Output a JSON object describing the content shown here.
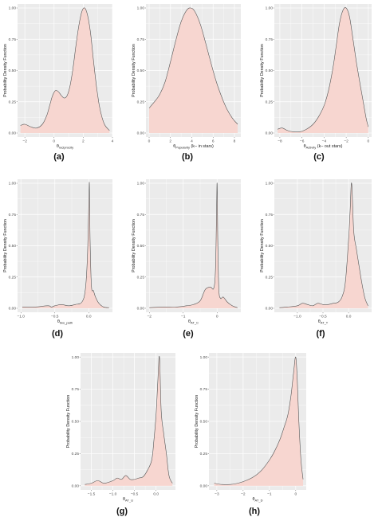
{
  "chart_data": [
    {
      "panel": "(a)",
      "type": "area",
      "ylabel": "Probability Density Function",
      "xlabel": {
        "main": "θ",
        "sub": "reciprocity",
        "suffix": ""
      },
      "xlim": [
        -2.5,
        4
      ],
      "ylim": [
        0,
        1
      ],
      "xticks": [
        -2,
        0,
        2,
        4
      ],
      "yticks": [
        0.0,
        0.25,
        0.5,
        0.75,
        1.0
      ],
      "ytick_labels": [
        "0.00",
        "0.25",
        "0.50",
        "0.75",
        "1.00"
      ],
      "x": [
        -2.3,
        -2.0,
        -1.6,
        -1.2,
        -0.8,
        -0.5,
        -0.3,
        -0.1,
        0.1,
        0.3,
        0.5,
        0.7,
        0.9,
        1.1,
        1.3,
        1.5,
        1.7,
        1.9,
        2.1,
        2.3,
        2.5,
        2.7,
        2.9,
        3.1,
        3.3,
        3.5,
        3.8
      ],
      "y": [
        0.06,
        0.07,
        0.05,
        0.04,
        0.07,
        0.14,
        0.22,
        0.3,
        0.34,
        0.33,
        0.3,
        0.28,
        0.3,
        0.38,
        0.52,
        0.7,
        0.86,
        0.97,
        1.0,
        0.94,
        0.8,
        0.58,
        0.38,
        0.22,
        0.12,
        0.06,
        0.02
      ]
    },
    {
      "panel": "(b)",
      "type": "area",
      "ylabel": "Probability Density Function",
      "xlabel": {
        "main": "θ",
        "sub": "Popularity",
        "suffix": " (k− in stars)"
      },
      "xlim": [
        -0.3,
        8.6
      ],
      "ylim": [
        0,
        1
      ],
      "xticks": [
        0,
        2,
        4,
        6,
        8
      ],
      "yticks": [
        0.0,
        0.25,
        0.5,
        0.75,
        1.0
      ],
      "ytick_labels": [
        "0.00",
        "0.25",
        "0.50",
        "0.75",
        "1.00"
      ],
      "x": [
        0,
        0.5,
        1.0,
        1.5,
        2.0,
        2.5,
        3.0,
        3.5,
        3.9,
        4.3,
        4.8,
        5.3,
        5.8,
        6.3,
        6.8,
        7.3,
        7.8,
        8.3
      ],
      "y": [
        0.2,
        0.25,
        0.31,
        0.41,
        0.57,
        0.74,
        0.89,
        0.98,
        1.0,
        0.97,
        0.87,
        0.72,
        0.56,
        0.41,
        0.29,
        0.19,
        0.12,
        0.07
      ]
    },
    {
      "panel": "(c)",
      "type": "area",
      "ylabel": "Probability Density Function",
      "xlabel": {
        "main": "θ",
        "sub": "Activity",
        "suffix": " (k− out stars)"
      },
      "xlim": [
        -8.5,
        0.3
      ],
      "ylim": [
        0,
        1
      ],
      "xticks": [
        -8,
        -6,
        -4,
        -2,
        0
      ],
      "yticks": [
        0.0,
        0.25,
        0.5,
        0.75,
        1.0
      ],
      "ytick_labels": [
        "0.00",
        "0.25",
        "0.50",
        "0.75",
        "1.00"
      ],
      "x": [
        -8.2,
        -7.8,
        -7.3,
        -6.8,
        -6.2,
        -5.6,
        -5.0,
        -4.5,
        -4.0,
        -3.6,
        -3.2,
        -2.9,
        -2.6,
        -2.3,
        -2.0,
        -1.7,
        -1.4,
        -1.1,
        -0.8,
        -0.5,
        -0.2,
        0.0
      ],
      "y": [
        0.03,
        0.04,
        0.02,
        0.01,
        0.01,
        0.03,
        0.07,
        0.13,
        0.22,
        0.34,
        0.52,
        0.7,
        0.88,
        0.98,
        1.0,
        0.93,
        0.76,
        0.58,
        0.42,
        0.27,
        0.12,
        0.05
      ]
    },
    {
      "panel": "(d)",
      "type": "area",
      "ylabel": "Probability Density Function",
      "xlabel": {
        "main": "θ",
        "sub": "two_path",
        "suffix": ""
      },
      "xlim": [
        -1.05,
        0.35
      ],
      "ylim": [
        0,
        1
      ],
      "xticks": [
        -1.0,
        -0.5,
        0.0
      ],
      "xtick_labels": [
        "−1.0",
        "−0.5",
        "0.0"
      ],
      "yticks": [
        0.0,
        0.25,
        0.5,
        0.75,
        1.0
      ],
      "ytick_labels": [
        "0.00",
        "0.25",
        "0.50",
        "0.75",
        "1.00"
      ],
      "x": [
        -0.98,
        -0.8,
        -0.6,
        -0.55,
        -0.5,
        -0.4,
        -0.3,
        -0.2,
        -0.1,
        -0.05,
        -0.02,
        0.0,
        0.01,
        0.02,
        0.04,
        0.07,
        0.1,
        0.15,
        0.22,
        0.3
      ],
      "y": [
        0.01,
        0.01,
        0.02,
        0.01,
        0.02,
        0.03,
        0.02,
        0.03,
        0.05,
        0.15,
        0.4,
        0.8,
        1.0,
        0.55,
        0.18,
        0.14,
        0.09,
        0.04,
        0.01,
        0.005
      ]
    },
    {
      "panel": "(e)",
      "type": "area",
      "ylabel": "Probability Density Function",
      "xlabel": {
        "main": "θ",
        "sub": "AT_C",
        "suffix": ""
      },
      "xlim": [
        -2.1,
        0.7
      ],
      "ylim": [
        0,
        1
      ],
      "xticks": [
        -2,
        -1,
        0
      ],
      "yticks": [
        0.0,
        0.25,
        0.5,
        0.75,
        1.0
      ],
      "ytick_labels": [
        "0.00",
        "0.25",
        "0.50",
        "0.75",
        "1.00"
      ],
      "x": [
        -2.0,
        -1.6,
        -1.2,
        -0.9,
        -0.7,
        -0.5,
        -0.35,
        -0.2,
        -0.1,
        -0.05,
        -0.02,
        0.0,
        0.02,
        0.05,
        0.1,
        0.18,
        0.3,
        0.45,
        0.6
      ],
      "y": [
        0.005,
        0.01,
        0.01,
        0.02,
        0.03,
        0.06,
        0.15,
        0.17,
        0.16,
        0.3,
        0.7,
        1.0,
        0.55,
        0.16,
        0.08,
        0.09,
        0.05,
        0.02,
        0.005
      ]
    },
    {
      "panel": "(f)",
      "type": "area",
      "ylabel": "Probability Density Function",
      "xlabel": {
        "main": "θ",
        "sub": "AT_T",
        "suffix": ""
      },
      "xlim": [
        -1.45,
        0.45
      ],
      "ylim": [
        0,
        1
      ],
      "xticks": [
        -1.0,
        -0.5,
        0.0
      ],
      "xtick_labels": [
        "−1.0",
        "−0.5",
        "0.0"
      ],
      "yticks": [
        0.0,
        0.25,
        0.5,
        0.75,
        1.0
      ],
      "ytick_labels": [
        "0.00",
        "0.25",
        "0.50",
        "0.75",
        "1.00"
      ],
      "x": [
        -1.35,
        -1.2,
        -1.0,
        -0.9,
        -0.8,
        -0.7,
        -0.6,
        -0.5,
        -0.4,
        -0.3,
        -0.2,
        -0.12,
        -0.06,
        0.0,
        0.03,
        0.06,
        0.1,
        0.15,
        0.2,
        0.26,
        0.32,
        0.38
      ],
      "y": [
        0.005,
        0.01,
        0.02,
        0.04,
        0.03,
        0.02,
        0.04,
        0.03,
        0.03,
        0.04,
        0.05,
        0.1,
        0.22,
        0.55,
        0.78,
        1.0,
        0.62,
        0.48,
        0.35,
        0.2,
        0.08,
        0.02
      ]
    },
    {
      "panel": "(g)",
      "type": "area",
      "ylabel": "Probability Density Function",
      "xlabel": {
        "main": "θ",
        "sub": "AT_U",
        "suffix": ""
      },
      "xlim": [
        -1.75,
        0.45
      ],
      "ylim": [
        0,
        1
      ],
      "xticks": [
        -1.5,
        -1.0,
        -0.5,
        0.0
      ],
      "xtick_labels": [
        "−1.5",
        "−1.0",
        "−0.5",
        "0.0"
      ],
      "yticks": [
        0.0,
        0.25,
        0.5,
        0.75,
        1.0
      ],
      "ytick_labels": [
        "0.00",
        "0.25",
        "0.50",
        "0.75",
        "1.00"
      ],
      "x": [
        -1.65,
        -1.5,
        -1.35,
        -1.2,
        -1.0,
        -0.9,
        -0.8,
        -0.7,
        -0.6,
        -0.5,
        -0.4,
        -0.3,
        -0.2,
        -0.1,
        -0.05,
        0.0,
        0.04,
        0.08,
        0.12,
        0.18,
        0.24,
        0.3,
        0.38
      ],
      "y": [
        0.01,
        0.02,
        0.04,
        0.02,
        0.04,
        0.06,
        0.05,
        0.08,
        0.05,
        0.05,
        0.06,
        0.07,
        0.12,
        0.2,
        0.35,
        0.55,
        0.8,
        1.0,
        0.58,
        0.4,
        0.25,
        0.08,
        0.02
      ]
    },
    {
      "panel": "(h)",
      "type": "area",
      "ylabel": "Probability Density Function",
      "xlabel": {
        "main": "θ",
        "sub": "AT_D",
        "suffix": ""
      },
      "xlim": [
        -3.3,
        0.4
      ],
      "ylim": [
        0,
        1
      ],
      "xticks": [
        -3,
        -2,
        -1,
        0
      ],
      "yticks": [
        0.0,
        0.25,
        0.5,
        0.75,
        1.0
      ],
      "ytick_labels": [
        "0.00",
        "0.25",
        "0.50",
        "0.75",
        "1.00"
      ],
      "x": [
        -3.1,
        -2.8,
        -2.5,
        -2.2,
        -1.9,
        -1.6,
        -1.3,
        -1.0,
        -0.8,
        -0.6,
        -0.45,
        -0.3,
        -0.18,
        -0.08,
        0.0,
        0.06,
        0.12,
        0.2,
        0.28
      ],
      "y": [
        0.02,
        0.01,
        0.01,
        0.02,
        0.04,
        0.07,
        0.12,
        0.2,
        0.27,
        0.36,
        0.45,
        0.55,
        0.7,
        0.88,
        1.0,
        0.82,
        0.5,
        0.2,
        0.05
      ]
    }
  ],
  "colors": {
    "panel_background": "#ebebeb",
    "grid": "#ffffff",
    "fill": "#f7d6d0",
    "line": "#555555"
  }
}
